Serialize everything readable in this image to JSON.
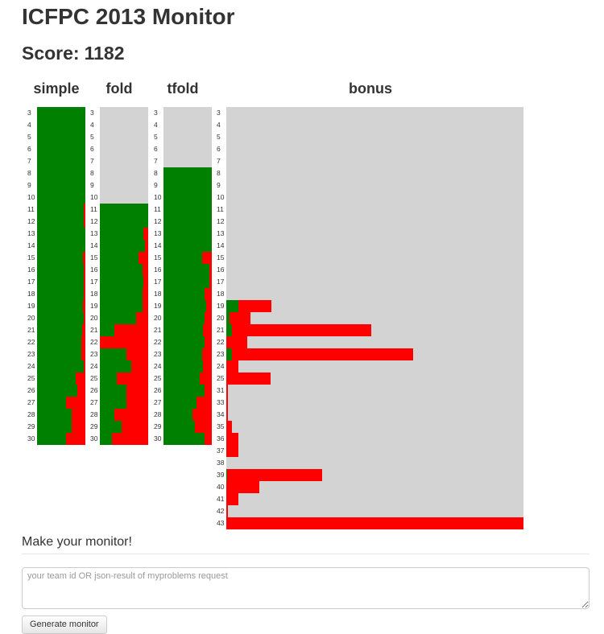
{
  "title": "ICFPC 2013 Monitor",
  "score": {
    "label": "Score:",
    "value": "1182"
  },
  "colors": {
    "solved": "#008000",
    "failed": "#ff0000",
    "unattempted": "#d3d3d3"
  },
  "columns": [
    {
      "name": "simple",
      "rows": [
        {
          "size": "3",
          "green": 1.0,
          "red": 0.0
        },
        {
          "size": "4",
          "green": 1.0,
          "red": 0.0
        },
        {
          "size": "5",
          "green": 1.0,
          "red": 0.0
        },
        {
          "size": "6",
          "green": 1.0,
          "red": 0.0
        },
        {
          "size": "7",
          "green": 1.0,
          "red": 0.0
        },
        {
          "size": "8",
          "green": 1.0,
          "red": 0.0
        },
        {
          "size": "9",
          "green": 1.0,
          "red": 0.0
        },
        {
          "size": "10",
          "green": 1.0,
          "red": 0.0
        },
        {
          "size": "11",
          "green": 0.97,
          "red": 0.03
        },
        {
          "size": "12",
          "green": 0.97,
          "red": 0.03
        },
        {
          "size": "13",
          "green": 1.0,
          "red": 0.0
        },
        {
          "size": "14",
          "green": 1.0,
          "red": 0.0
        },
        {
          "size": "15",
          "green": 0.95,
          "red": 0.05
        },
        {
          "size": "16",
          "green": 0.97,
          "red": 0.03
        },
        {
          "size": "17",
          "green": 0.97,
          "red": 0.03
        },
        {
          "size": "18",
          "green": 0.97,
          "red": 0.03
        },
        {
          "size": "19",
          "green": 0.95,
          "red": 0.05
        },
        {
          "size": "20",
          "green": 0.97,
          "red": 0.03
        },
        {
          "size": "21",
          "green": 0.93,
          "red": 0.07
        },
        {
          "size": "22",
          "green": 0.92,
          "red": 0.08
        },
        {
          "size": "23",
          "green": 0.92,
          "red": 0.08
        },
        {
          "size": "24",
          "green": 0.97,
          "red": 0.03
        },
        {
          "size": "25",
          "green": 0.8,
          "red": 0.2
        },
        {
          "size": "26",
          "green": 0.83,
          "red": 0.17
        },
        {
          "size": "27",
          "green": 0.6,
          "red": 0.4
        },
        {
          "size": "28",
          "green": 0.72,
          "red": 0.28
        },
        {
          "size": "29",
          "green": 0.72,
          "red": 0.28
        },
        {
          "size": "30",
          "green": 0.6,
          "red": 0.4
        }
      ]
    },
    {
      "name": "fold",
      "rows": [
        {
          "size": "3",
          "green": 0.0,
          "red": 0.0
        },
        {
          "size": "4",
          "green": 0.0,
          "red": 0.0
        },
        {
          "size": "5",
          "green": 0.0,
          "red": 0.0
        },
        {
          "size": "6",
          "green": 0.0,
          "red": 0.0
        },
        {
          "size": "7",
          "green": 0.0,
          "red": 0.0
        },
        {
          "size": "8",
          "green": 0.0,
          "red": 0.0
        },
        {
          "size": "9",
          "green": 0.0,
          "red": 0.0
        },
        {
          "size": "10",
          "green": 0.0,
          "red": 0.0
        },
        {
          "size": "11",
          "green": 1.0,
          "red": 0.0
        },
        {
          "size": "12",
          "green": 1.0,
          "red": 0.0
        },
        {
          "size": "13",
          "green": 0.9,
          "red": 0.1
        },
        {
          "size": "14",
          "green": 0.93,
          "red": 0.07
        },
        {
          "size": "15",
          "green": 0.8,
          "red": 0.2
        },
        {
          "size": "16",
          "green": 0.88,
          "red": 0.12
        },
        {
          "size": "17",
          "green": 0.9,
          "red": 0.1
        },
        {
          "size": "18",
          "green": 0.88,
          "red": 0.12
        },
        {
          "size": "19",
          "green": 0.88,
          "red": 0.12
        },
        {
          "size": "20",
          "green": 0.75,
          "red": 0.25
        },
        {
          "size": "21",
          "green": 0.3,
          "red": 0.7
        },
        {
          "size": "22",
          "green": 0.0,
          "red": 1.0
        },
        {
          "size": "23",
          "green": 0.55,
          "red": 0.45
        },
        {
          "size": "24",
          "green": 0.65,
          "red": 0.35
        },
        {
          "size": "25",
          "green": 0.35,
          "red": 0.65
        },
        {
          "size": "26",
          "green": 0.55,
          "red": 0.45
        },
        {
          "size": "27",
          "green": 0.55,
          "red": 0.45
        },
        {
          "size": "28",
          "green": 0.3,
          "red": 0.7
        },
        {
          "size": "29",
          "green": 0.45,
          "red": 0.55
        },
        {
          "size": "30",
          "green": 0.25,
          "red": 0.75
        }
      ]
    },
    {
      "name": "tfold",
      "rows": [
        {
          "size": "3",
          "green": 0.0,
          "red": 0.0
        },
        {
          "size": "4",
          "green": 0.0,
          "red": 0.0
        },
        {
          "size": "5",
          "green": 0.0,
          "red": 0.0
        },
        {
          "size": "6",
          "green": 0.0,
          "red": 0.0
        },
        {
          "size": "7",
          "green": 0.0,
          "red": 0.0
        },
        {
          "size": "8",
          "green": 1.0,
          "red": 0.0
        },
        {
          "size": "9",
          "green": 1.0,
          "red": 0.0
        },
        {
          "size": "10",
          "green": 1.0,
          "red": 0.0
        },
        {
          "size": "11",
          "green": 1.0,
          "red": 0.0
        },
        {
          "size": "12",
          "green": 1.0,
          "red": 0.0
        },
        {
          "size": "13",
          "green": 1.0,
          "red": 0.0
        },
        {
          "size": "14",
          "green": 1.0,
          "red": 0.0
        },
        {
          "size": "15",
          "green": 0.8,
          "red": 0.2
        },
        {
          "size": "16",
          "green": 0.95,
          "red": 0.05
        },
        {
          "size": "17",
          "green": 0.95,
          "red": 0.05
        },
        {
          "size": "18",
          "green": 0.85,
          "red": 0.15
        },
        {
          "size": "19",
          "green": 0.88,
          "red": 0.12
        },
        {
          "size": "20",
          "green": 0.85,
          "red": 0.15
        },
        {
          "size": "21",
          "green": 0.82,
          "red": 0.18
        },
        {
          "size": "22",
          "green": 0.85,
          "red": 0.15
        },
        {
          "size": "23",
          "green": 0.8,
          "red": 0.2
        },
        {
          "size": "24",
          "green": 0.82,
          "red": 0.18
        },
        {
          "size": "25",
          "green": 0.75,
          "red": 0.25
        },
        {
          "size": "26",
          "green": 0.85,
          "red": 0.15
        },
        {
          "size": "27",
          "green": 0.68,
          "red": 0.32
        },
        {
          "size": "28",
          "green": 0.6,
          "red": 0.4
        },
        {
          "size": "29",
          "green": 0.65,
          "red": 0.35
        },
        {
          "size": "30",
          "green": 0.85,
          "red": 0.15
        }
      ]
    },
    {
      "name": "bonus",
      "rows": [
        {
          "size": "3",
          "green": 0.0,
          "red": 0.0
        },
        {
          "size": "4",
          "green": 0.0,
          "red": 0.0
        },
        {
          "size": "5",
          "green": 0.0,
          "red": 0.0
        },
        {
          "size": "6",
          "green": 0.0,
          "red": 0.0
        },
        {
          "size": "7",
          "green": 0.0,
          "red": 0.0
        },
        {
          "size": "8",
          "green": 0.0,
          "red": 0.0
        },
        {
          "size": "9",
          "green": 0.0,
          "red": 0.0
        },
        {
          "size": "10",
          "green": 0.0,
          "red": 0.0
        },
        {
          "size": "11",
          "green": 0.0,
          "red": 0.0
        },
        {
          "size": "12",
          "green": 0.0,
          "red": 0.0
        },
        {
          "size": "13",
          "green": 0.0,
          "red": 0.0
        },
        {
          "size": "14",
          "green": 0.0,
          "red": 0.0
        },
        {
          "size": "15",
          "green": 0.0,
          "red": 0.0
        },
        {
          "size": "16",
          "green": 0.0,
          "red": 0.0
        },
        {
          "size": "17",
          "green": 0.0,
          "red": 0.0
        },
        {
          "size": "18",
          "green": 0.0,
          "red": 0.0
        },
        {
          "size": "19",
          "green": 0.04,
          "red": 0.11
        },
        {
          "size": "20",
          "green": 0.01,
          "red": 0.07
        },
        {
          "size": "21",
          "green": 0.02,
          "red": 0.47
        },
        {
          "size": "22",
          "green": 0.0,
          "red": 0.07
        },
        {
          "size": "23",
          "green": 0.02,
          "red": 0.61
        },
        {
          "size": "24",
          "green": 0.0,
          "red": 0.04
        },
        {
          "size": "25",
          "green": 0.0,
          "red": 0.15
        },
        {
          "size": "31",
          "green": 0.0,
          "red": 0.006
        },
        {
          "size": "33",
          "green": 0.0,
          "red": 0.006
        },
        {
          "size": "34",
          "green": 0.0,
          "red": 0.006
        },
        {
          "size": "35",
          "green": 0.0,
          "red": 0.02
        },
        {
          "size": "36",
          "green": 0.0,
          "red": 0.04
        },
        {
          "size": "37",
          "green": 0.0,
          "red": 0.04
        },
        {
          "size": "38",
          "green": 0.0,
          "red": 0.0
        },
        {
          "size": "39",
          "green": 0.004,
          "red": 0.32
        },
        {
          "size": "40",
          "green": 0.0,
          "red": 0.11
        },
        {
          "size": "41",
          "green": 0.0,
          "red": 0.04
        },
        {
          "size": "42",
          "green": 0.0,
          "red": 0.006
        },
        {
          "size": "43",
          "green": 0.0,
          "red": 1.0
        }
      ]
    }
  ],
  "form": {
    "heading": "Make your monitor!",
    "placeholder": "your team id OR json-result of myproblems request",
    "button_label": "Generate monitor"
  }
}
